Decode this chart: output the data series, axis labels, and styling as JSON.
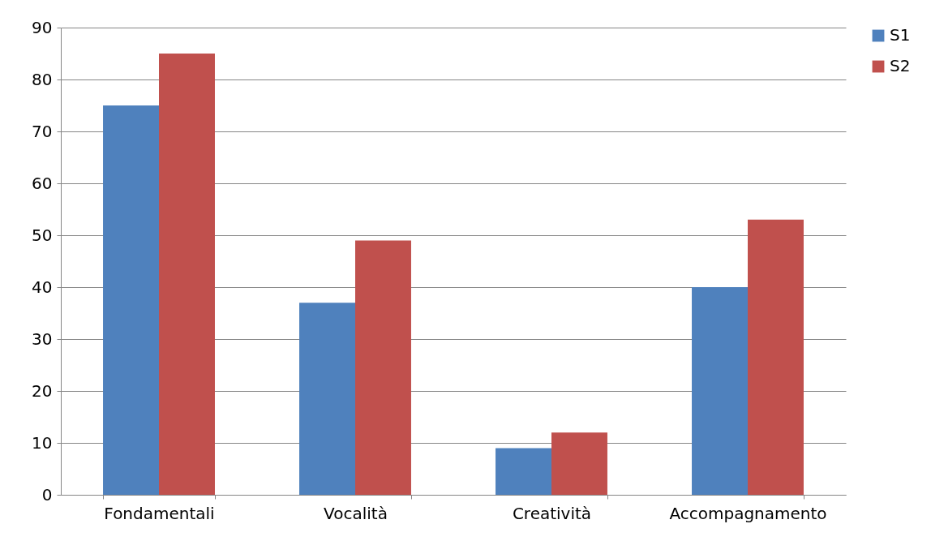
{
  "chart_data": {
    "type": "bar",
    "categories": [
      "Fondamentali",
      "Vocalità",
      "Creatività",
      "Accompagnamento"
    ],
    "series": [
      {
        "name": "S1",
        "color": "#4f81bd",
        "values": [
          75,
          37,
          9,
          40
        ]
      },
      {
        "name": "S2",
        "color": "#c0504d",
        "values": [
          85,
          49,
          12,
          53
        ]
      }
    ],
    "ylim": [
      0,
      90
    ],
    "yticks": [
      0,
      10,
      20,
      30,
      40,
      50,
      60,
      70,
      80,
      90
    ],
    "grid": "y",
    "legend": "right"
  }
}
